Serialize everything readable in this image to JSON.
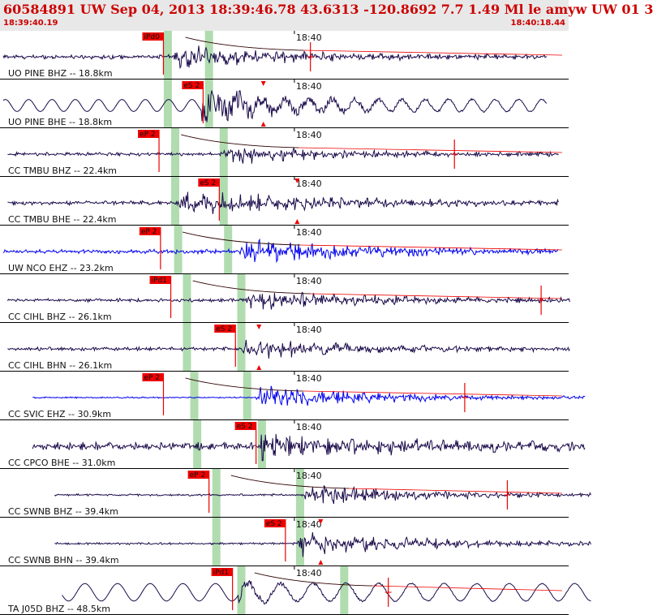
{
  "header": {
    "title": "60584891 UW Sep 04, 2013 18:39:46.78   43.6313 -120.8692  7.7 1.49 Ml le amyw UW 01   3",
    "start_time": "18:39:40.19",
    "end_time": "18:40:18.44"
  },
  "colors": {
    "header_bg": "#e8e8e8",
    "header_text": "#cc0000",
    "trace_default": "#1a0a4a",
    "trace_blue": "#0000ee",
    "pick": "#ee0000",
    "window": "#b0dcb0",
    "arrival_curve": "#111111"
  },
  "chart_data": {
    "type": "line",
    "time_range": [
      "18:39:40.19",
      "18:40:18.44"
    ],
    "time_tick_label": "18:40",
    "traces": [
      {
        "label": "UO PINE BHZ -- 18.8km",
        "pick": "iPd0",
        "color": "default",
        "pick_time": 10.9,
        "win1": 11.2,
        "win2": 14.0,
        "start": 0.0,
        "end": 37.0,
        "onset": 11.5,
        "amp": 0.55,
        "bg": 0.12,
        "freq": 1.6,
        "coda": 9,
        "curve": true,
        "tail_mark": 20.9,
        "s_mark": null
      },
      {
        "label": "UO PINE BHE -- 18.8km",
        "pick": "eS 2",
        "color": "default",
        "pick_time": 13.6,
        "win1": 11.2,
        "win2": 14.0,
        "start": 0.0,
        "end": 37.0,
        "onset": 13.5,
        "amp": 0.62,
        "bg": 0.22,
        "freq": 0.35,
        "coda": 8,
        "curve": false,
        "tail_mark": null,
        "s_mark": 17.7
      },
      {
        "label": "CC TMBU BHZ -- 22.4km",
        "pick": "eP 2",
        "color": "default",
        "pick_time": 10.6,
        "win1": 11.7,
        "win2": 15.0,
        "start": 0.3,
        "end": 37.8,
        "onset": 15.0,
        "amp": 0.42,
        "bg": 0.1,
        "freq": 1.5,
        "coda": 10,
        "curve": true,
        "tail_mark": 30.7,
        "s_mark": null
      },
      {
        "label": "CC TMBU BHE -- 22.4km",
        "pick": "eS 2",
        "color": "default",
        "pick_time": 14.7,
        "win1": 11.7,
        "win2": 15.0,
        "start": 0.3,
        "end": 37.8,
        "onset": 12.0,
        "amp": 0.55,
        "bg": 0.12,
        "freq": 1.7,
        "coda": 14,
        "curve": false,
        "tail_mark": null,
        "s_mark": 20.0
      },
      {
        "label": "UW NCO EHZ -- 23.2km",
        "pick": "eP 2",
        "color": "blue",
        "pick_time": 10.7,
        "win1": 11.9,
        "win2": 15.3,
        "start": 0.0,
        "end": 37.8,
        "onset": 16.0,
        "amp": 0.5,
        "bg": 0.12,
        "freq": 3.5,
        "coda": 12,
        "curve": true,
        "tail_mark": null,
        "s_mark": null
      },
      {
        "label": "CC CIHL BHZ -- 26.1km",
        "pick": "iPd1",
        "color": "default",
        "pick_time": 11.4,
        "win1": 12.5,
        "win2": 16.2,
        "start": 0.3,
        "end": 38.6,
        "onset": 16.5,
        "amp": 0.45,
        "bg": 0.1,
        "freq": 1.5,
        "coda": 12,
        "curve": true,
        "tail_mark": 36.6,
        "s_mark": null
      },
      {
        "label": "CC CIHL BHN -- 26.1km",
        "pick": "eS 2",
        "color": "default",
        "pick_time": 15.8,
        "win1": 12.5,
        "win2": 16.2,
        "start": 0.3,
        "end": 38.6,
        "onset": 16.2,
        "amp": 0.48,
        "bg": 0.1,
        "freq": 1.4,
        "coda": 10,
        "curve": false,
        "tail_mark": null,
        "s_mark": 17.4
      },
      {
        "label": "CC SVIC EHZ -- 30.9km",
        "pick": "eP 2",
        "color": "blue",
        "pick_time": 10.9,
        "win1": 13.0,
        "win2": 16.6,
        "start": 2.0,
        "end": 39.6,
        "onset": 17.2,
        "amp": 0.55,
        "bg": 0.04,
        "freq": 3.0,
        "coda": 12,
        "curve": true,
        "tail_mark": 31.4,
        "s_mark": null
      },
      {
        "label": "CC CPCO BHE -- 31.0km",
        "pick": "eS 2",
        "color": "default",
        "pick_time": 17.2,
        "win1": 13.2,
        "win2": 17.6,
        "start": 2.0,
        "end": 39.6,
        "onset": 17.5,
        "amp": 0.5,
        "bg": 0.22,
        "freq": 1.2,
        "coda": 15,
        "curve": false,
        "tail_mark": null,
        "s_mark": null
      },
      {
        "label": "CC SWNB BHZ -- 39.4km",
        "pick": "eP 2",
        "color": "default",
        "pick_time": 14.0,
        "win1": 14.5,
        "win2": 20.2,
        "start": 3.5,
        "end": 40.0,
        "onset": 20.5,
        "amp": 0.45,
        "bg": 0.06,
        "freq": 1.5,
        "coda": 12,
        "curve": true,
        "tail_mark": 34.3,
        "s_mark": null
      },
      {
        "label": "CC SWNB BHN -- 39.4km",
        "pick": "eS 2",
        "color": "default",
        "pick_time": 19.2,
        "win1": 14.5,
        "win2": 20.2,
        "start": 3.5,
        "end": 40.0,
        "onset": 20.0,
        "amp": 0.6,
        "bg": 0.06,
        "freq": 1.5,
        "coda": 12,
        "curve": false,
        "tail_mark": null,
        "s_mark": 21.6
      },
      {
        "label": "TA J05D BHZ -- 48.5km",
        "pick": "iPd1",
        "color": "default",
        "pick_time": 15.6,
        "win1": 16.2,
        "win2": 23.2,
        "start": 4.0,
        "end": 40.0,
        "onset": 16.0,
        "amp": 0.4,
        "bg": 0.32,
        "freq": 0.25,
        "coda": 0,
        "curve": true,
        "tail_mark": 26.2,
        "s_mark": null
      }
    ]
  }
}
